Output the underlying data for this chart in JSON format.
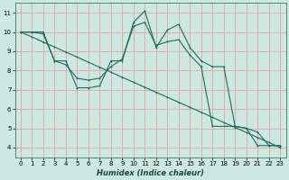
{
  "xlabel": "Humidex (Indice chaleur)",
  "bg_color": "#cce8e0",
  "grid_color_major": "#e8a0a0",
  "grid_color_minor": "#e8c0c0",
  "line_color": "#1a6e5e",
  "spine_color": "#4a8a7a",
  "xlim": [
    -0.5,
    23.5
  ],
  "ylim": [
    3.5,
    11.5
  ],
  "yticks": [
    4,
    5,
    6,
    7,
    8,
    9,
    10,
    11
  ],
  "xtick_labels": [
    "0",
    "1",
    "2",
    "3",
    "4",
    "5",
    "6",
    "7",
    "8",
    "9",
    "10",
    "11",
    "12",
    "13",
    "14",
    "15",
    "16",
    "17",
    "18",
    "19",
    "20",
    "21",
    "22",
    "23"
  ],
  "line1_y": [
    10.0,
    10.0,
    10.0,
    8.5,
    8.5,
    7.1,
    7.1,
    7.2,
    8.5,
    8.5,
    10.5,
    11.1,
    9.2,
    10.1,
    10.4,
    9.2,
    8.5,
    8.2,
    8.2,
    5.1,
    5.0,
    4.1,
    4.1,
    4.1
  ],
  "line2_y": [
    10.0,
    10.0,
    9.9,
    8.5,
    8.3,
    7.6,
    7.5,
    7.6,
    8.2,
    8.6,
    10.3,
    10.5,
    9.3,
    9.5,
    9.6,
    8.8,
    8.2,
    5.1,
    5.1,
    5.1,
    5.0,
    4.8,
    4.1,
    4.1
  ],
  "line3_desc": [
    10.0,
    9.74,
    9.48,
    9.22,
    8.96,
    8.7,
    8.43,
    8.17,
    7.91,
    7.65,
    7.39,
    7.13,
    6.87,
    6.61,
    6.35,
    6.09,
    5.83,
    5.57,
    5.3,
    5.04,
    4.78,
    4.52,
    4.26,
    4.0
  ],
  "xlabel_fontsize": 6,
  "tick_fontsize": 5,
  "lw": 0.8,
  "ms": 2.0
}
